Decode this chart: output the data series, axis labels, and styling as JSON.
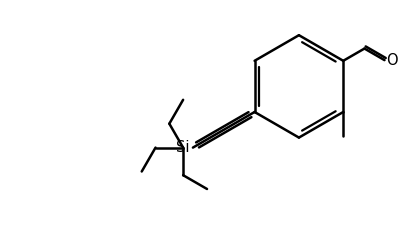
{
  "bg_color": "#ffffff",
  "line_color": "#000000",
  "line_width": 1.8,
  "figure_width": 4.02,
  "figure_height": 2.44,
  "dpi": 100,
  "font_size_si": 10.5,
  "font_size_o": 10.5
}
